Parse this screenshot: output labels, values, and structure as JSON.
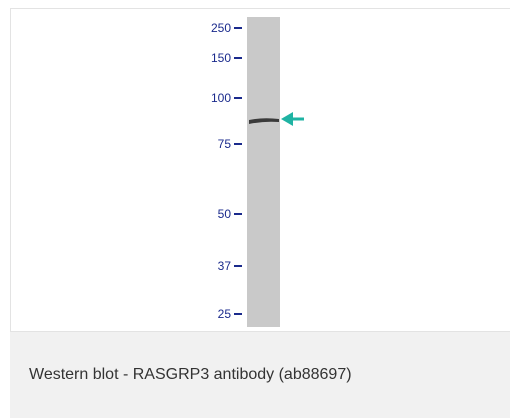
{
  "figure": {
    "lane_color": "#c9c9c9",
    "band_color": "#3a3a3a",
    "arrow_color": "#1fb3a3",
    "marker_color": "#1a2a8c",
    "markers": [
      "250",
      "150",
      "100",
      "75",
      "50",
      "37",
      "25"
    ],
    "arrow_icon": "arrow-left-icon"
  },
  "caption": {
    "text": "Western blot - RASGRP3 antibody (ab88697)"
  }
}
